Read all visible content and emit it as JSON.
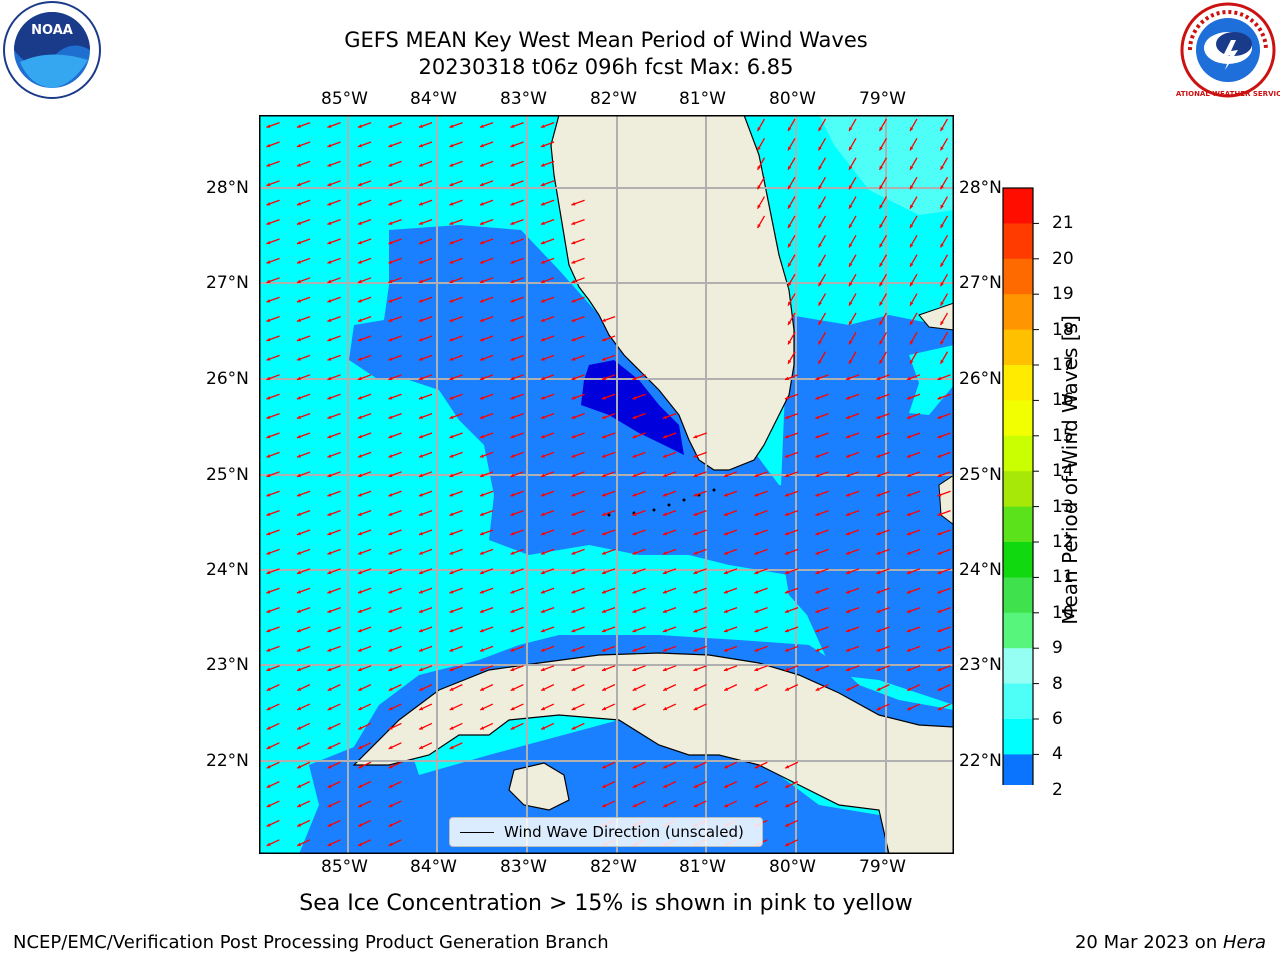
{
  "title": {
    "line1": "GEFS MEAN Key West Mean Period of Wind Waves",
    "line2": "20230318 t06z 096h fcst   Max: 6.85"
  },
  "lon_ticks": [
    "85°W",
    "84°W",
    "83°W",
    "82°W",
    "81°W",
    "80°W",
    "79°W"
  ],
  "lat_ticks": [
    "28°N",
    "27°N",
    "26°N",
    "25°N",
    "24°N",
    "23°N",
    "22°N"
  ],
  "legend": {
    "label": "Wind Wave Direction (unscaled)"
  },
  "colorbar": {
    "label": "Mean Period of Wind Waves [s]",
    "ticks": [
      "2",
      "4",
      "6",
      "8",
      "9",
      "10",
      "11",
      "12",
      "13",
      "14",
      "15",
      "16",
      "17",
      "18",
      "19",
      "20",
      "21"
    ],
    "colors": [
      "#0a74ff",
      "#00ffff",
      "#4dfff7",
      "#96fff4",
      "#58f57d",
      "#3fe14c",
      "#11d90f",
      "#5ce21a",
      "#a8e809",
      "#c9ff00",
      "#f1ff00",
      "#ffeb00",
      "#ffc000",
      "#ff9500",
      "#ff6a00",
      "#ff3b00",
      "#ff0e00"
    ],
    "extend_color": "#0000dd"
  },
  "note": "Sea Ice Concentration > 15% is shown in pink to yellow",
  "footer": {
    "left": "NCEP/EMC/Verification Post Processing Product Generation Branch",
    "date": "20 Mar 2023 on ",
    "machine": "Hera"
  },
  "logos": {
    "left": "NOAA",
    "right": "NATIONAL WEATHER SERVICE"
  },
  "colors": {
    "land": "#efeedd",
    "ocean_light": "#00ffff",
    "ocean_mid": "#1a80ff",
    "ocean_dark": "#0000dd",
    "arrow": "#ff0000",
    "grid": "#b0b0b0"
  }
}
